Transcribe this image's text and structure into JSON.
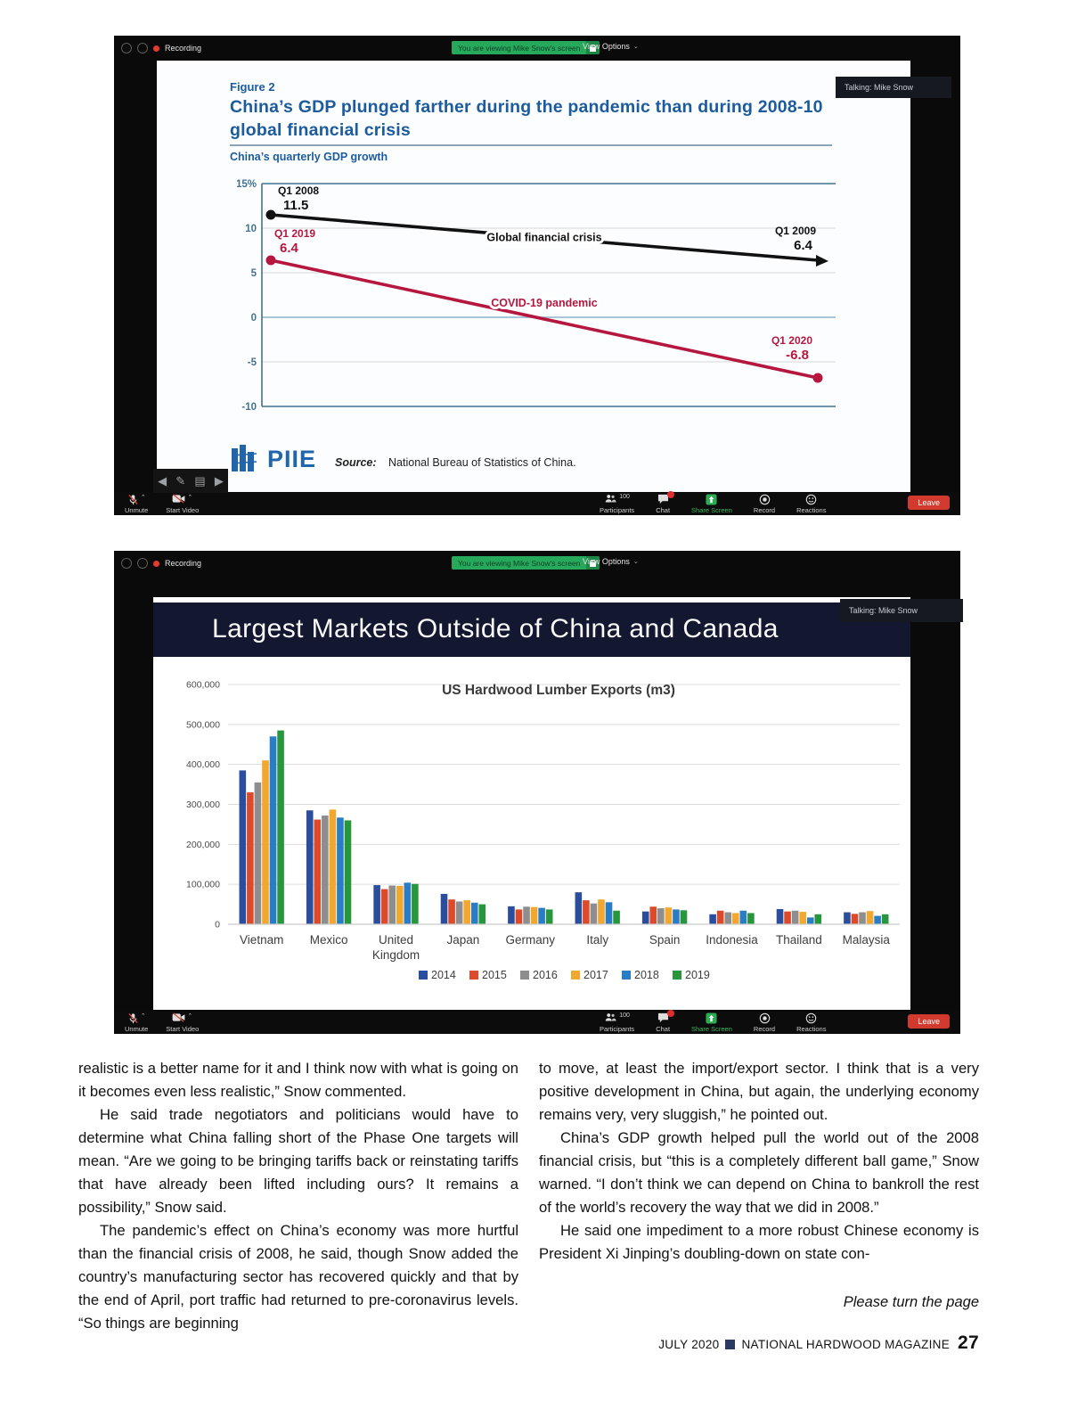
{
  "zoom_ui": {
    "recording_label": "Recording",
    "viewing_banner": "You are viewing Mike Snow's screen",
    "view_options_label": "View Options",
    "talking_label": "Talking: Mike Snow",
    "toolbar": {
      "unmute": "Unmute",
      "start_video": "Start Video",
      "participants": "Participants",
      "participants_count": "100",
      "chat": "Chat",
      "share_screen": "Share Screen",
      "record": "Record",
      "reactions": "Reactions",
      "leave": "Leave"
    }
  },
  "chart_data": [
    {
      "type": "line",
      "figure_label": "Figure 2",
      "title": "China’s GDP plunged farther during the pandemic than during 2008-10 global financial crisis",
      "subtitle": "China’s quarterly GDP growth",
      "unit": "%",
      "yticks": [
        15,
        10,
        5,
        0,
        -5,
        -10
      ],
      "ylim": [
        -10,
        15
      ],
      "grid": true,
      "legend_position": "inline",
      "series": [
        {
          "name": "Global financial crisis",
          "color": "#111111",
          "points": [
            {
              "label": "Q1 2008",
              "value": 11.5
            },
            {
              "label": "Q1 2009",
              "value": 6.4
            }
          ]
        },
        {
          "name": "COVID-19 pandemic",
          "color": "#b5173f",
          "points": [
            {
              "label": "Q1 2019",
              "value": 6.4
            },
            {
              "label": "Q1 2020",
              "value": -6.8
            }
          ]
        }
      ],
      "logo": "PIIE",
      "source_label": "Source:",
      "source": "National Bureau of Statistics of China."
    },
    {
      "type": "bar",
      "slide_title": "Largest Markets Outside of China and Canada",
      "title": "US Hardwood Lumber Exports (m3)",
      "categories": [
        "Vietnam",
        "Mexico",
        "United Kingdom",
        "Japan",
        "Germany",
        "Italy",
        "Spain",
        "Indonesia",
        "Thailand",
        "Malaysia"
      ],
      "ylim": [
        0,
        600000
      ],
      "yticks": [
        600000,
        500000,
        400000,
        300000,
        200000,
        100000,
        0
      ],
      "grid": true,
      "legend_position": "bottom",
      "series": [
        {
          "name": "2014",
          "color": "#2b4d9e",
          "values": [
            385000,
            285000,
            98000,
            76000,
            45000,
            80000,
            32000,
            25000,
            38000,
            30000
          ]
        },
        {
          "name": "2015",
          "color": "#dd4a2a",
          "values": [
            330000,
            262000,
            88000,
            62000,
            37000,
            60000,
            44000,
            34000,
            32000,
            26000
          ]
        },
        {
          "name": "2016",
          "color": "#8e8e8e",
          "values": [
            355000,
            272000,
            97000,
            57000,
            44000,
            52000,
            40000,
            30000,
            34000,
            30000
          ]
        },
        {
          "name": "2017",
          "color": "#f2a72e",
          "values": [
            410000,
            287000,
            96000,
            60000,
            43000,
            62000,
            42000,
            28000,
            31000,
            33000
          ]
        },
        {
          "name": "2018",
          "color": "#2a7cc4",
          "values": [
            470000,
            267000,
            104000,
            54000,
            41000,
            55000,
            37000,
            34000,
            17000,
            21000
          ]
        },
        {
          "name": "2019",
          "color": "#27963c",
          "values": [
            485000,
            260000,
            101000,
            50000,
            37000,
            34000,
            35000,
            28000,
            25000,
            25000
          ]
        }
      ]
    }
  ],
  "article": {
    "left_column": [
      "realistic is a better name for it and I think now with what is going on it becomes even less realistic,” Snow commented.",
      "He said trade negotiators and politicians would have to determine what China falling short of the Phase One targets will mean. “Are we going to be bringing tariffs back or reinstating tariffs that have already been lifted including ours? It remains a possibility,” Snow said.",
      "The pandemic’s effect on China’s economy was more hurtful than the financial crisis of 2008, he said, though Snow added the country’s manufacturing sector has recovered quickly and that by the end of April, port traffic had returned to pre-coronavirus levels. “So things are beginning"
    ],
    "right_column": [
      "to move, at least the import/export sector. I think that is a very positive development in China, but again, the underlying economy remains very, very sluggish,” he pointed out.",
      "China’s GDP growth helped pull the world out of the 2008 financial crisis, but “this is a completely different ball game,” Snow warned. “I don’t think we can depend on China to bankroll the rest of the world’s recovery the way that we did in 2008.”",
      "He said one impediment to a more robust Chinese economy is President Xi Jinping’s doubling-down on state con-"
    ],
    "turn_page": "Please turn the page",
    "footer": {
      "issue": "JULY 2020",
      "magazine": "NATIONAL HARDWOOD MAGAZINE",
      "page_number": "27"
    }
  }
}
